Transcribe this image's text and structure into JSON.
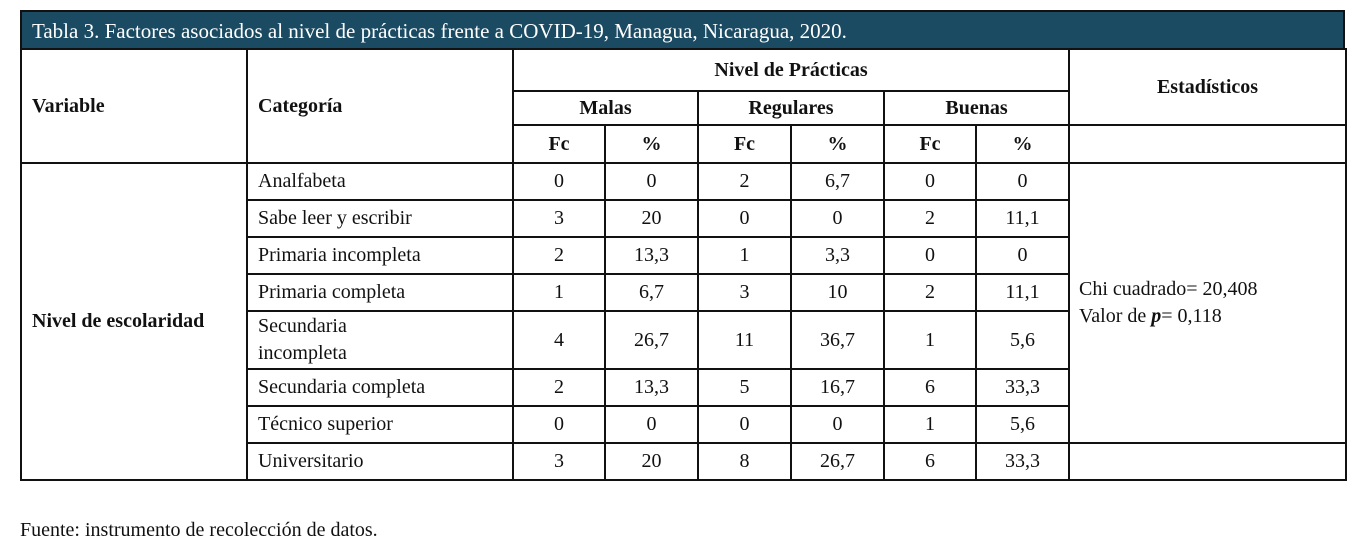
{
  "table": {
    "title": "Tabla 3. Factores asociados al nivel de prácticas frente a COVID-19, Managua, Nicaragua, 2020.",
    "headers": {
      "variable": "Variable",
      "categoria": "Categoría",
      "nivel_practicas": "Nivel de Prácticas",
      "estadisticos": "Estadísticos",
      "malas": "Malas",
      "regulares": "Regulares",
      "buenas": "Buenas",
      "fc": "Fc",
      "pct": "%"
    },
    "variable_name": "Nivel de escolaridad",
    "rows": [
      {
        "categoria": "Analfabeta",
        "malas_fc": "0",
        "malas_pct": "0",
        "regulares_fc": "2",
        "regulares_pct": "6,7",
        "buenas_fc": "0",
        "buenas_pct": "0"
      },
      {
        "categoria": "Sabe leer y escribir",
        "malas_fc": "3",
        "malas_pct": "20",
        "regulares_fc": "0",
        "regulares_pct": "0",
        "buenas_fc": "2",
        "buenas_pct": "11,1"
      },
      {
        "categoria": "Primaria incompleta",
        "malas_fc": "2",
        "malas_pct": "13,3",
        "regulares_fc": "1",
        "regulares_pct": "3,3",
        "buenas_fc": "0",
        "buenas_pct": "0"
      },
      {
        "categoria": "Primaria completa",
        "malas_fc": "1",
        "malas_pct": "6,7",
        "regulares_fc": "3",
        "regulares_pct": "10",
        "buenas_fc": "2",
        "buenas_pct": "11,1"
      },
      {
        "categoria": "Secundaria incompleta",
        "categoria_line1": "Secundaria",
        "categoria_line2": "incompleta",
        "malas_fc": "4",
        "malas_pct": "26,7",
        "regulares_fc": "11",
        "regulares_pct": "36,7",
        "buenas_fc": "1",
        "buenas_pct": "5,6"
      },
      {
        "categoria": "Secundaria completa",
        "malas_fc": "2",
        "malas_pct": "13,3",
        "regulares_fc": "5",
        "regulares_pct": "16,7",
        "buenas_fc": "6",
        "buenas_pct": "33,3"
      },
      {
        "categoria": "Técnico superior",
        "malas_fc": "0",
        "malas_pct": "0",
        "regulares_fc": "0",
        "regulares_pct": "0",
        "buenas_fc": "1",
        "buenas_pct": "5,6"
      },
      {
        "categoria": "Universitario",
        "malas_fc": "3",
        "malas_pct": "20",
        "regulares_fc": "8",
        "regulares_pct": "26,7",
        "buenas_fc": "6",
        "buenas_pct": "33,3"
      }
    ],
    "stats": {
      "chi_label": "Chi cuadrado= 20,408",
      "p_prefix": "Valor de ",
      "p_symbol": "p",
      "p_suffix": "= 0,118"
    }
  },
  "source": "Fuente: instrumento de recolección de datos.",
  "colors": {
    "title_bar_bg": "#1b4a63",
    "title_bar_text": "#ffffff",
    "border": "#111111"
  }
}
